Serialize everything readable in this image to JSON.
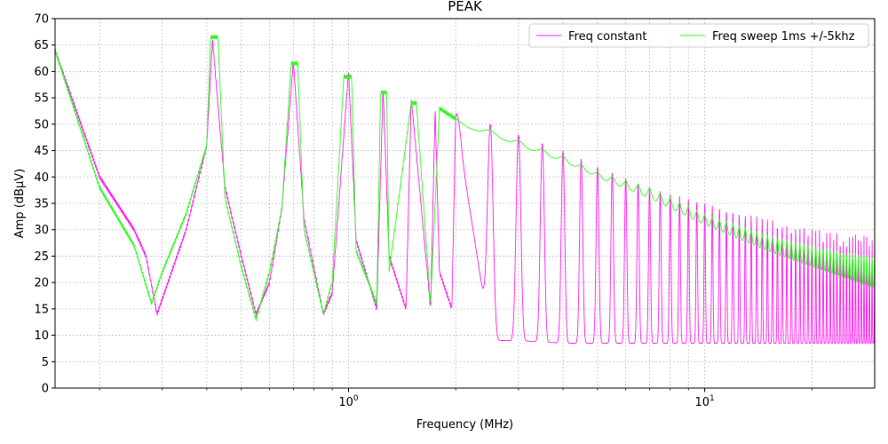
{
  "chart_data": {
    "type": "line",
    "title": "PEAK",
    "xlabel": "Frequency (MHz)",
    "ylabel": "Amp (dBµV)",
    "x_scale": "log",
    "xlim": [
      0.15,
      30
    ],
    "ylim": [
      0,
      70
    ],
    "y_ticks": [
      0,
      5,
      10,
      15,
      20,
      25,
      30,
      35,
      40,
      45,
      50,
      55,
      60,
      65,
      70
    ],
    "x_major_ticks": [
      1,
      10
    ],
    "x_major_tick_labels": [
      "10^0",
      "10^1"
    ],
    "grid": true,
    "legend_position": "top-right",
    "series": [
      {
        "name": "Freq constant",
        "color": "#ff1ff0",
        "envelope": {
          "x": [
            0.15,
            0.2,
            0.25,
            0.27,
            0.29,
            0.35,
            0.4,
            0.415,
            0.45,
            0.5,
            0.55,
            0.6,
            0.65,
            0.7,
            0.75,
            0.85,
            0.9,
            1.0,
            1.05,
            1.2,
            1.25,
            1.3,
            1.45,
            1.5,
            1.7,
            1.75,
            1.8,
            1.95,
            2.0,
            2.5,
            3.0,
            4.0,
            5.0,
            7.0,
            10.0,
            15.0,
            20.0,
            30.0
          ],
          "peak": [
            64,
            40,
            30,
            25,
            14,
            30,
            46,
            66,
            38,
            25,
            14,
            20,
            34,
            62,
            32,
            14,
            18,
            60,
            28,
            15,
            57,
            25,
            15,
            55,
            15,
            53,
            22,
            15,
            52,
            50,
            48,
            45,
            42,
            38,
            35,
            32,
            30,
            29
          ],
          "floor": [
            64,
            40,
            30,
            24,
            12,
            30,
            46,
            66,
            37,
            24,
            10,
            18,
            33,
            61,
            30,
            9,
            17,
            59,
            26,
            11,
            56,
            22,
            11,
            54,
            11,
            52,
            19,
            11,
            51,
            9,
            9,
            8.5,
            8.5,
            8.5,
            8.5,
            8.5,
            8.5,
            8.5
          ]
        }
      },
      {
        "name": "Freq sweep 1ms +/-5khz",
        "color": "#2efc1f",
        "envelope": {
          "x": [
            0.15,
            0.2,
            0.25,
            0.28,
            0.3,
            0.35,
            0.4,
            0.41,
            0.43,
            0.45,
            0.5,
            0.55,
            0.6,
            0.65,
            0.69,
            0.72,
            0.75,
            0.85,
            0.9,
            0.97,
            1.02,
            1.05,
            1.2,
            1.23,
            1.28,
            1.3,
            1.5,
            1.55,
            1.7,
            1.8,
            2.0,
            2.5,
            3.0,
            4.0,
            5.0,
            7.0,
            10.0,
            15.0,
            20.0,
            30.0
          ],
          "peak": [
            64,
            38,
            27,
            16,
            22,
            33,
            46,
            66.5,
            66.5,
            36,
            23,
            13,
            22,
            34,
            61.5,
            61.5,
            30,
            14,
            20,
            59,
            59,
            26,
            16,
            56,
            56,
            22,
            54,
            54,
            16,
            53,
            51,
            49,
            47,
            44,
            41,
            38,
            33,
            29,
            27,
            25
          ],
          "floor": [
            64,
            38,
            27,
            15,
            21,
            33,
            46,
            66,
            66,
            35,
            22,
            13,
            20,
            33,
            61,
            61,
            29,
            13,
            18,
            58,
            58,
            24,
            13,
            55,
            55,
            20,
            53,
            53,
            13,
            52,
            50,
            48,
            46,
            43,
            40,
            36,
            31,
            26,
            23,
            19
          ]
        }
      }
    ]
  }
}
